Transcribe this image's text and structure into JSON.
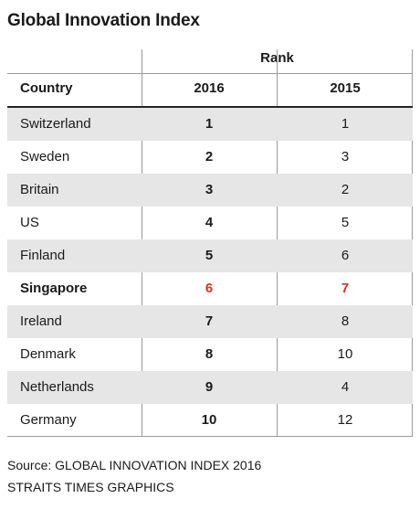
{
  "title": "Global Innovation Index",
  "group_header": "Rank",
  "columns": {
    "country": "Country",
    "y2016": "2016",
    "y2015": "2015"
  },
  "highlight_color": "#d6331f",
  "chart_data": {
    "type": "table",
    "title": "Global Innovation Index",
    "columns": [
      "Country",
      "2016",
      "2015"
    ],
    "rows": [
      {
        "country": "Switzerland",
        "r2016": "1",
        "r2015": "1"
      },
      {
        "country": "Sweden",
        "r2016": "2",
        "r2015": "3"
      },
      {
        "country": "Britain",
        "r2016": "3",
        "r2015": "2"
      },
      {
        "country": "US",
        "r2016": "4",
        "r2015": "5"
      },
      {
        "country": "Finland",
        "r2016": "5",
        "r2015": "6"
      },
      {
        "country": "Singapore",
        "r2016": "6",
        "r2015": "7",
        "highlight": true
      },
      {
        "country": "Ireland",
        "r2016": "7",
        "r2015": "8"
      },
      {
        "country": "Denmark",
        "r2016": "8",
        "r2015": "10"
      },
      {
        "country": "Netherlands",
        "r2016": "9",
        "r2015": "4"
      },
      {
        "country": "Germany",
        "r2016": "10",
        "r2015": "12"
      }
    ]
  },
  "source": {
    "line1": "Source: GLOBAL INNOVATION INDEX 2016",
    "line2": "STRAITS TIMES GRAPHICS"
  }
}
